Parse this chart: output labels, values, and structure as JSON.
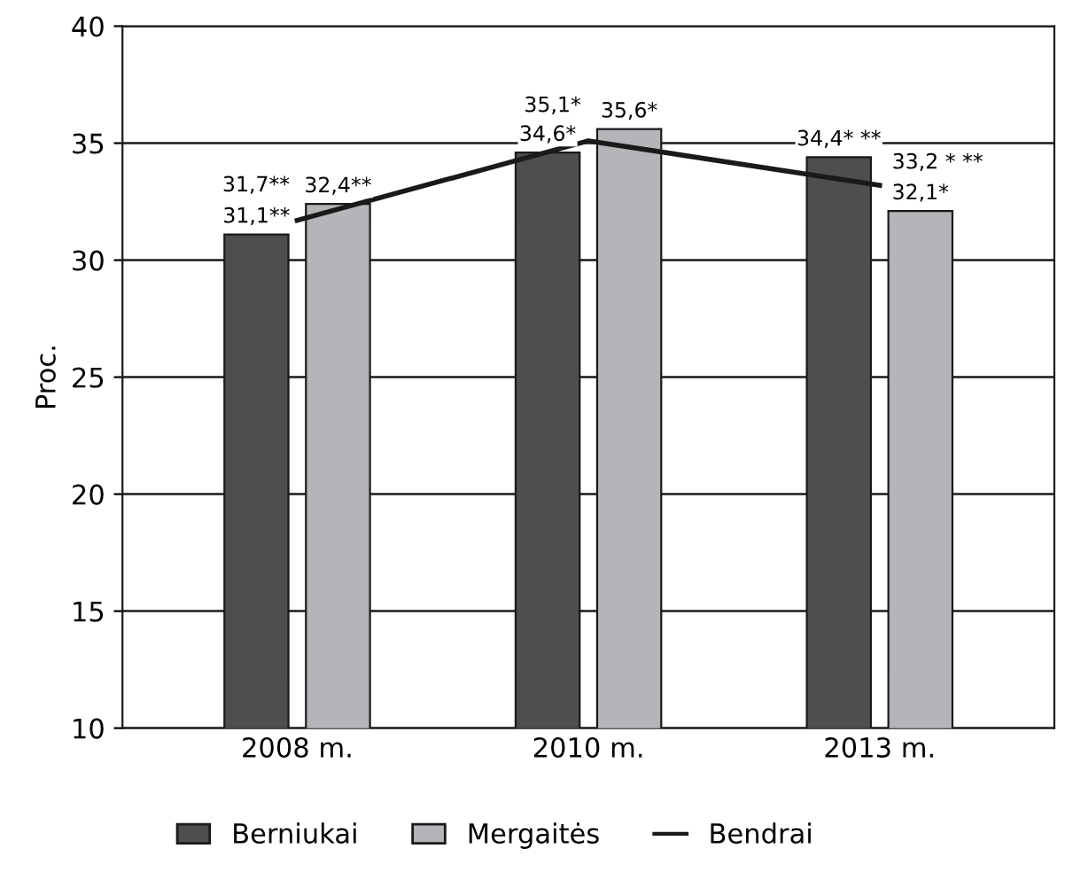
{
  "chart_data": {
    "type": "bar",
    "ylabel": "Proc.",
    "categories": [
      "2008 m.",
      "2010 m.",
      "2013 m."
    ],
    "series": [
      {
        "name": "Berniukai",
        "color": "#4d4e50",
        "values": [
          31.1,
          34.6,
          34.4
        ],
        "value_labels": [
          "31,1**",
          "34,6*",
          "34,4* **"
        ]
      },
      {
        "name": "Mergaitės",
        "color": "#b4b5b8",
        "values": [
          32.4,
          35.6,
          32.1
        ],
        "value_labels": [
          "32,4**",
          "35,6*",
          "32,1*"
        ]
      },
      {
        "name": "Bendrai",
        "type": "line",
        "color": "#1a1a1a",
        "values": [
          31.7,
          35.1,
          33.2
        ],
        "value_labels": [
          "31,7**",
          "35,1*",
          "33,2 * **"
        ]
      }
    ],
    "ylim": [
      10,
      40
    ],
    "yticks": [
      10,
      15,
      20,
      25,
      30,
      35,
      40
    ],
    "grid": "y",
    "legend": "bottom",
    "marker": "none",
    "line_style": "solid"
  }
}
